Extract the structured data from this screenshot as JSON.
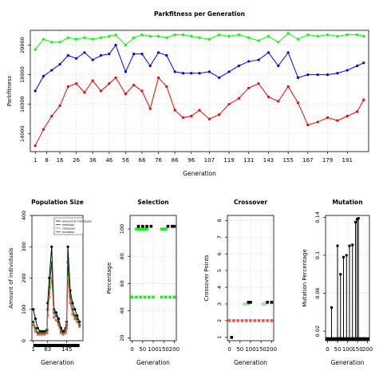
{
  "chart_data": [
    {
      "type": "line",
      "title": "Parkfitness per Generation",
      "xlabel": "Generation",
      "ylabel": "Parkfitness",
      "xlim": [
        -2,
        204
      ],
      "ylim": [
        12800,
        21000
      ],
      "x_ticks": [
        1,
        8,
        16,
        26,
        36,
        46,
        56,
        66,
        76,
        86,
        96,
        107,
        119,
        131,
        143,
        155,
        167,
        179,
        191
      ],
      "y_ticks": [
        14000,
        16000,
        18000,
        20000
      ],
      "grid": true,
      "series": [
        {
          "color": "#00ff00",
          "x": [
            1,
            6,
            11,
            16,
            21,
            26,
            31,
            36,
            41,
            46,
            50,
            56,
            61,
            66,
            71,
            76,
            81,
            86,
            91,
            96,
            101,
            107,
            113,
            119,
            125,
            131,
            137,
            143,
            149,
            155,
            161,
            167,
            173,
            179,
            185,
            191,
            197,
            201
          ],
          "values": [
            19700,
            20400,
            20200,
            20200,
            20500,
            20400,
            20500,
            20400,
            20500,
            20600,
            20700,
            20000,
            20500,
            20700,
            20600,
            20600,
            20500,
            20700,
            20700,
            20600,
            20500,
            20400,
            20700,
            20600,
            20700,
            20500,
            20300,
            20600,
            20200,
            20800,
            20400,
            20700,
            20600,
            20700,
            20600,
            20700,
            20700,
            20600
          ]
        },
        {
          "color": "#0000ff",
          "x": [
            1,
            6,
            11,
            16,
            21,
            26,
            31,
            36,
            41,
            46,
            50,
            56,
            61,
            66,
            71,
            76,
            81,
            86,
            91,
            96,
            101,
            107,
            113,
            119,
            125,
            131,
            137,
            143,
            149,
            155,
            161,
            167,
            173,
            179,
            185,
            191,
            197,
            201
          ],
          "values": [
            16900,
            17900,
            18300,
            18700,
            19300,
            19100,
            19500,
            19000,
            19300,
            19400,
            20000,
            18200,
            19400,
            19400,
            18600,
            19500,
            19300,
            18200,
            18100,
            18100,
            18100,
            18200,
            17800,
            18200,
            18600,
            18900,
            19000,
            19500,
            18600,
            19500,
            17800,
            18000,
            18000,
            18000,
            18100,
            18300,
            18600,
            18800
          ]
        },
        {
          "color": "#ff0000",
          "x": [
            1,
            6,
            11,
            16,
            21,
            26,
            31,
            36,
            41,
            46,
            50,
            56,
            61,
            66,
            71,
            76,
            81,
            86,
            91,
            96,
            101,
            107,
            113,
            119,
            125,
            131,
            137,
            143,
            149,
            155,
            161,
            167,
            173,
            179,
            185,
            191,
            197,
            201
          ],
          "values": [
            13200,
            14300,
            15200,
            15900,
            17200,
            17400,
            16800,
            17600,
            16900,
            17400,
            17800,
            16700,
            17300,
            16900,
            15700,
            17800,
            17200,
            15600,
            15100,
            15200,
            15600,
            15000,
            15300,
            16000,
            16400,
            17100,
            17400,
            16500,
            16200,
            17200,
            16100,
            14600,
            14800,
            15100,
            14900,
            15200,
            15500,
            16300
          ]
        }
      ]
    },
    {
      "type": "line",
      "title": "Population Size",
      "xlabel": "Generation",
      "ylabel": "Amount of individuals",
      "xlim": [
        -5,
        215
      ],
      "ylim": [
        0,
        400
      ],
      "x_ticks": [
        1,
        63,
        145
      ],
      "y_ticks": [
        0,
        100,
        200,
        300,
        400
      ],
      "legend": {
        "placement": "top-right",
        "entries": [
          "amount of individuals",
          "selection",
          "crossover",
          "mutation"
        ]
      },
      "series": [
        {
          "color": "#000000",
          "x": [
            1,
            10,
            20,
            30,
            40,
            50,
            60,
            63,
            70,
            80,
            90,
            100,
            110,
            120,
            130,
            140,
            145,
            150,
            160,
            170,
            180,
            190,
            200
          ],
          "values": [
            100,
            70,
            40,
            30,
            30,
            30,
            35,
            120,
            200,
            300,
            100,
            90,
            70,
            40,
            30,
            40,
            60,
            300,
            160,
            120,
            100,
            80,
            60
          ]
        },
        {
          "color": "#006400",
          "x": [
            1,
            10,
            20,
            30,
            40,
            50,
            60,
            63,
            70,
            80,
            90,
            100,
            110,
            120,
            130,
            140,
            145,
            150,
            160,
            170,
            180,
            190,
            200
          ],
          "values": [
            60,
            40,
            25,
            25,
            25,
            25,
            30,
            100,
            170,
            250,
            90,
            80,
            60,
            30,
            25,
            30,
            50,
            250,
            140,
            100,
            80,
            70,
            50
          ]
        },
        {
          "color": "#e05a5a",
          "x": [
            1,
            10,
            20,
            30,
            40,
            50,
            60,
            63,
            70,
            80,
            90,
            100,
            110,
            120,
            130,
            140,
            145,
            150,
            160,
            170,
            180,
            190,
            200
          ],
          "values": [
            50,
            30,
            20,
            20,
            20,
            20,
            25,
            80,
            140,
            200,
            75,
            65,
            50,
            25,
            20,
            25,
            40,
            200,
            120,
            85,
            70,
            60,
            45
          ]
        }
      ]
    },
    {
      "type": "scatter",
      "title": "Selection",
      "xlabel": "Generation",
      "ylabel": "Percentage",
      "xlim": [
        -10,
        210
      ],
      "ylim": [
        18,
        110
      ],
      "x_ticks": [
        0,
        50,
        100,
        150,
        200
      ],
      "y_ticks": [
        20,
        40,
        60,
        80,
        100
      ],
      "series": [
        {
          "color": "#00ff00",
          "x": [
            0,
            20,
            40,
            60,
            80,
            100,
            140,
            160,
            180,
            200
          ],
          "values": [
            50,
            50,
            50,
            50,
            50,
            50,
            50,
            50,
            50,
            50
          ]
        },
        {
          "color": "#00ff00",
          "x": [
            20,
            30,
            40,
            50,
            60,
            70,
            140,
            150,
            160
          ],
          "values": [
            100,
            100,
            100,
            100,
            100,
            100,
            100,
            100,
            100
          ]
        },
        {
          "color": "#000000",
          "x": [
            30,
            50,
            70,
            90,
            170,
            190,
            200
          ],
          "values": [
            102,
            102,
            102,
            102,
            102,
            102,
            102
          ]
        }
      ]
    },
    {
      "type": "scatter",
      "title": "Crossover",
      "xlabel": "Generation",
      "ylabel": "Crossover Points",
      "xlim": [
        -10,
        210
      ],
      "ylim": [
        0.8,
        8.3
      ],
      "x_ticks": [
        0,
        50,
        100,
        150,
        200
      ],
      "y_ticks": [
        1,
        2,
        3,
        4,
        5,
        6,
        7,
        8
      ],
      "series": [
        {
          "color": "#e05a5a",
          "x": [
            0,
            20,
            40,
            60,
            80,
            100,
            120,
            140,
            160,
            180,
            200
          ],
          "values": [
            2,
            2,
            2,
            2,
            2,
            2,
            2,
            2,
            2,
            2,
            2
          ]
        },
        {
          "color": "#90ee90",
          "x": [
            70,
            80,
            90,
            160,
            170
          ],
          "values": [
            3,
            3,
            3,
            3,
            3
          ]
        },
        {
          "color": "#000000",
          "x": [
            10,
            90,
            100,
            180,
            200
          ],
          "values": [
            1,
            3.1,
            3.1,
            3.1,
            3.1
          ]
        }
      ]
    },
    {
      "type": "bar",
      "title": "Mutation",
      "xlabel": "Generation",
      "ylabel": "Mutation Percentage",
      "xlim": [
        -10,
        210
      ],
      "ylim": [
        0.01,
        0.142
      ],
      "x_ticks": [
        0,
        50,
        100,
        150,
        200
      ],
      "y_ticks": [
        0.02,
        0.06,
        0.1,
        0.14
      ],
      "categories": [
        20,
        50,
        65,
        80,
        95,
        110,
        125,
        140,
        148,
        155
      ],
      "values": [
        0.045,
        0.11,
        0.08,
        0.098,
        0.1,
        0.11,
        0.111,
        0.135,
        0.138,
        0.139
      ]
    }
  ]
}
